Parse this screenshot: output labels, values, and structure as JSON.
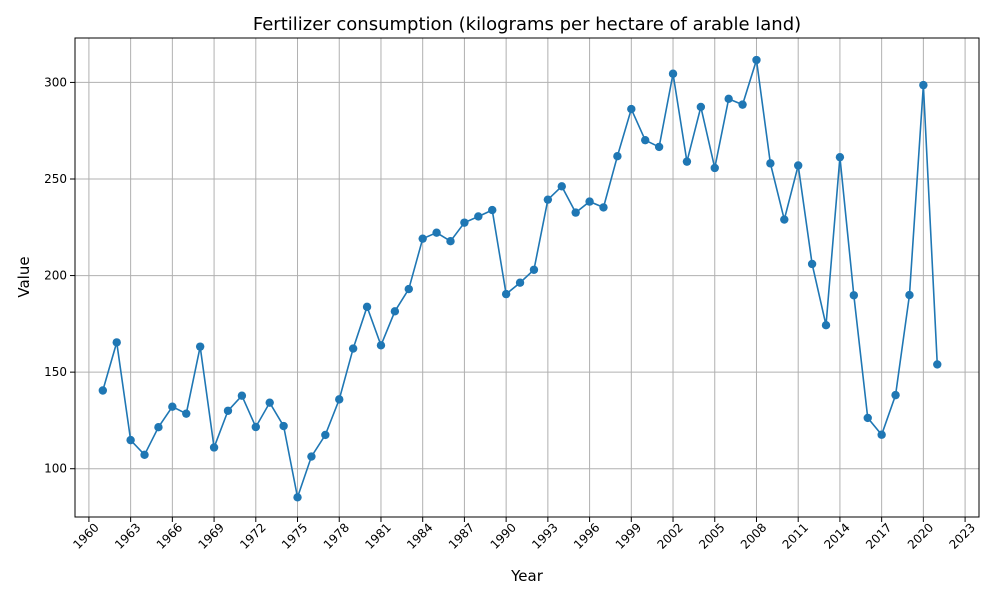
{
  "chart_data": {
    "type": "line",
    "title": "Fertilizer consumption (kilograms per hectare of arable land)",
    "xlabel": "Year",
    "ylabel": "Value",
    "xlim": [
      1959.0,
      2024.0
    ],
    "ylim": [
      75,
      323
    ],
    "xticks": [
      1960,
      1963,
      1966,
      1969,
      1972,
      1975,
      1978,
      1981,
      1984,
      1987,
      1990,
      1993,
      1996,
      1999,
      2002,
      2005,
      2008,
      2011,
      2014,
      2017,
      2020,
      2023
    ],
    "yticks": [
      100,
      150,
      200,
      250,
      300
    ],
    "grid": true,
    "color": "#1f77b4",
    "marker": "circle",
    "series": [
      {
        "x": [
          1961,
          1962,
          1963,
          1964,
          1965,
          1966,
          1967,
          1968,
          1969,
          1970,
          1971,
          1972,
          1973,
          1974,
          1975,
          1976,
          1977,
          1978,
          1979,
          1980,
          1981,
          1982,
          1983,
          1984,
          1985,
          1986,
          1987,
          1988,
          1989,
          1990,
          1991,
          1992,
          1993,
          1994,
          1995,
          1996,
          1997,
          1998,
          1999,
          2000,
          2001,
          2002,
          2003,
          2004,
          2005,
          2006,
          2007,
          2008,
          2009,
          2010,
          2011,
          2012,
          2013,
          2014,
          2015,
          2016,
          2017,
          2018,
          2019,
          2020,
          2021
        ],
        "y": [
          140.5,
          165.4,
          114.8,
          107.2,
          121.5,
          132.1,
          128.5,
          163.2,
          111.0,
          130.0,
          137.8,
          121.6,
          134.2,
          122.1,
          85.2,
          106.3,
          117.5,
          135.9,
          162.2,
          183.8,
          163.9,
          181.5,
          193.0,
          219.1,
          222.2,
          217.8,
          227.4,
          230.6,
          233.9,
          190.4,
          196.3,
          203.0,
          239.3,
          246.2,
          232.6,
          238.3,
          235.3,
          261.8,
          286.2,
          270.1,
          266.6,
          304.5,
          259.0,
          287.3,
          255.7,
          291.5,
          288.5,
          311.6,
          258.1,
          229.0,
          257.0,
          206.0,
          174.3,
          261.3,
          189.8,
          126.3,
          117.6,
          138.1,
          189.9,
          298.6,
          154.0
        ]
      }
    ]
  }
}
